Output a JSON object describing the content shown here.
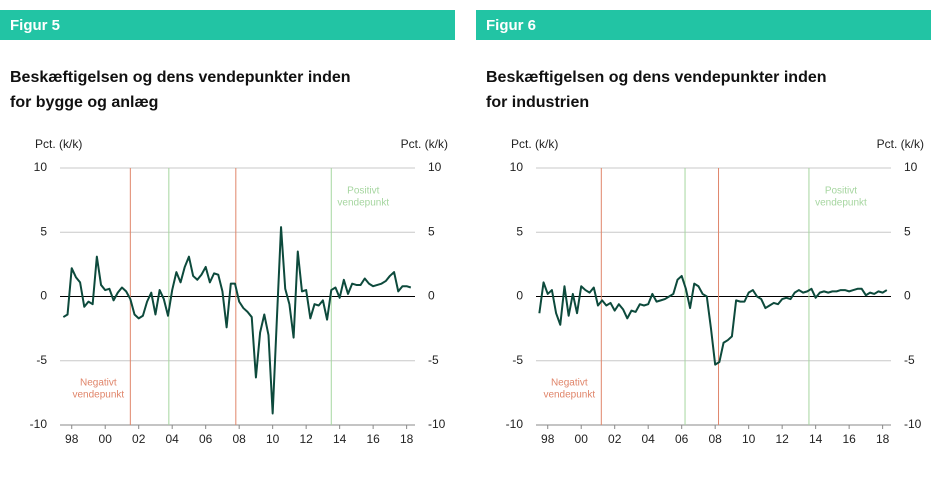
{
  "chart_data": [
    {
      "type": "line",
      "figure_label": "Figur 5",
      "title": [
        "Beskæftigelsen og dens vendepunkter inden",
        "for bygge og anlæg"
      ],
      "y_label": "Pct. (k/k)",
      "y2_label": "Pct. (k/k)",
      "x": [
        1997.5,
        1997.75,
        1998,
        1998.25,
        1998.5,
        1998.75,
        1999,
        1999.25,
        1999.5,
        1999.75,
        2000,
        2000.25,
        2000.5,
        2000.75,
        2001,
        2001.25,
        2001.5,
        2001.75,
        2002,
        2002.25,
        2002.5,
        2002.75,
        2003,
        2003.25,
        2003.5,
        2003.75,
        2004,
        2004.25,
        2004.5,
        2004.75,
        2005,
        2005.25,
        2005.5,
        2005.75,
        2006,
        2006.25,
        2006.5,
        2006.75,
        2007,
        2007.25,
        2007.5,
        2007.75,
        2008,
        2008.25,
        2008.5,
        2008.75,
        2009,
        2009.25,
        2009.5,
        2009.75,
        2010,
        2010.25,
        2010.5,
        2010.75,
        2011,
        2011.25,
        2011.5,
        2011.75,
        2012,
        2012.25,
        2012.5,
        2012.75,
        2013,
        2013.25,
        2013.5,
        2013.75,
        2014,
        2014.25,
        2014.5,
        2014.75,
        2015,
        2015.25,
        2015.5,
        2015.75,
        2016,
        2016.25,
        2016.5,
        2016.75,
        2017,
        2017.25,
        2017.5,
        2017.75,
        2018,
        2018.25
      ],
      "series": [
        {
          "color": "#0d4a3c",
          "values": [
            -1.6,
            -1.4,
            2.2,
            1.5,
            1.1,
            -0.8,
            -0.4,
            -0.6,
            3.1,
            0.9,
            0.5,
            0.6,
            -0.3,
            0.3,
            0.7,
            0.4,
            -0.2,
            -1.4,
            -1.7,
            -1.5,
            -0.4,
            0.3,
            -1.4,
            0.5,
            -0.2,
            -1.5,
            0.5,
            1.9,
            1.1,
            2.3,
            3.1,
            1.6,
            1.3,
            1.7,
            2.3,
            1.1,
            1.8,
            1.7,
            0.4,
            -2.4,
            1.0,
            1.0,
            -0.4,
            -0.9,
            -1.2,
            -1.6,
            -6.3,
            -2.8,
            -1.4,
            -3.0,
            -9.1,
            -1.8,
            5.4,
            0.6,
            -0.6,
            -3.2,
            3.5,
            0.4,
            0.5,
            -1.7,
            -0.6,
            -0.7,
            -0.3,
            -1.8,
            0.5,
            0.7,
            -0.1,
            1.3,
            0.2,
            1.0,
            0.9,
            0.9,
            1.4,
            1.0,
            0.8,
            0.9,
            1.0,
            1.2,
            1.6,
            1.9,
            0.4,
            0.8,
            0.8,
            0.7
          ]
        }
      ],
      "xlim": [
        1997.3,
        2018.5
      ],
      "xticks": [
        {
          "value": 1998,
          "label": "98"
        },
        {
          "value": 2000,
          "label": "00"
        },
        {
          "value": 2002,
          "label": "02"
        },
        {
          "value": 2004,
          "label": "04"
        },
        {
          "value": 2006,
          "label": "06"
        },
        {
          "value": 2008,
          "label": "08"
        },
        {
          "value": 2010,
          "label": "10"
        },
        {
          "value": 2012,
          "label": "12"
        },
        {
          "value": 2014,
          "label": "14"
        },
        {
          "value": 2016,
          "label": "16"
        },
        {
          "value": 2018,
          "label": "18"
        }
      ],
      "ylim": [
        -10,
        10
      ],
      "yticks": [
        10,
        5,
        0,
        -5,
        -10
      ],
      "y2lim": [
        -10,
        10
      ],
      "y2ticks": [
        10,
        5,
        0,
        -5,
        -10
      ],
      "grid": true,
      "vlines": [
        {
          "x": 2001.5,
          "color": "#e0856a",
          "label": [
            "Negativt",
            "vendepunkt"
          ]
        },
        {
          "x": 2003.8,
          "color": "#a6d6a0"
        },
        {
          "x": 2007.8,
          "color": "#e0856a"
        },
        {
          "x": 2013.5,
          "color": "#a6d6a0",
          "label": [
            "Positivt",
            "vendepunkt"
          ]
        }
      ]
    },
    {
      "type": "line",
      "figure_label": "Figur 6",
      "title": [
        "Beskæftigelsen og dens vendepunkter inden",
        "for industrien"
      ],
      "y_label": "Pct. (k/k)",
      "y2_label": "Pct. (k/k)",
      "x": [
        1997.5,
        1997.75,
        1998,
        1998.25,
        1998.5,
        1998.75,
        1999,
        1999.25,
        1999.5,
        1999.75,
        2000,
        2000.25,
        2000.5,
        2000.75,
        2001,
        2001.25,
        2001.5,
        2001.75,
        2002,
        2002.25,
        2002.5,
        2002.75,
        2003,
        2003.25,
        2003.5,
        2003.75,
        2004,
        2004.25,
        2004.5,
        2004.75,
        2005,
        2005.25,
        2005.5,
        2005.75,
        2006,
        2006.25,
        2006.5,
        2006.75,
        2007,
        2007.25,
        2007.5,
        2007.75,
        2008,
        2008.25,
        2008.5,
        2008.75,
        2009,
        2009.25,
        2009.5,
        2009.75,
        2010,
        2010.25,
        2010.5,
        2010.75,
        2011,
        2011.25,
        2011.5,
        2011.75,
        2012,
        2012.25,
        2012.5,
        2012.75,
        2013,
        2013.25,
        2013.5,
        2013.75,
        2014,
        2014.25,
        2014.5,
        2014.75,
        2015,
        2015.25,
        2015.5,
        2015.75,
        2016,
        2016.25,
        2016.5,
        2016.75,
        2017,
        2017.25,
        2017.5,
        2017.75,
        2018,
        2018.25
      ],
      "series": [
        {
          "color": "#0d4a3c",
          "values": [
            -1.3,
            1.1,
            0.2,
            0.5,
            -1.3,
            -2.2,
            0.8,
            -1.5,
            0.2,
            -1.3,
            0.8,
            0.5,
            0.3,
            0.7,
            -0.7,
            -0.3,
            -0.7,
            -0.5,
            -1.1,
            -0.6,
            -1.0,
            -1.7,
            -1.1,
            -1.2,
            -0.6,
            -0.7,
            -0.6,
            0.2,
            -0.4,
            -0.3,
            -0.2,
            0.0,
            0.2,
            1.3,
            1.6,
            0.6,
            -0.9,
            1.0,
            0.8,
            0.2,
            0.0,
            -2.5,
            -5.3,
            -5.1,
            -3.6,
            -3.4,
            -3.1,
            -0.3,
            -0.4,
            -0.4,
            0.3,
            0.5,
            0.0,
            -0.2,
            -0.9,
            -0.7,
            -0.5,
            -0.6,
            -0.2,
            -0.1,
            -0.2,
            0.3,
            0.5,
            0.3,
            0.4,
            0.6,
            -0.1,
            0.3,
            0.4,
            0.3,
            0.4,
            0.4,
            0.5,
            0.5,
            0.4,
            0.5,
            0.6,
            0.6,
            0.1,
            0.3,
            0.2,
            0.4,
            0.3,
            0.5
          ]
        }
      ],
      "xlim": [
        1997.3,
        2018.5
      ],
      "xticks": [
        {
          "value": 1998,
          "label": "98"
        },
        {
          "value": 2000,
          "label": "00"
        },
        {
          "value": 2002,
          "label": "02"
        },
        {
          "value": 2004,
          "label": "04"
        },
        {
          "value": 2006,
          "label": "06"
        },
        {
          "value": 2008,
          "label": "08"
        },
        {
          "value": 2010,
          "label": "10"
        },
        {
          "value": 2012,
          "label": "12"
        },
        {
          "value": 2014,
          "label": "14"
        },
        {
          "value": 2016,
          "label": "16"
        },
        {
          "value": 2018,
          "label": "18"
        }
      ],
      "ylim": [
        -10,
        10
      ],
      "yticks": [
        10,
        5,
        0,
        -5,
        -10
      ],
      "y2lim": [
        -10,
        10
      ],
      "y2ticks": [
        10,
        5,
        0,
        -5,
        -10
      ],
      "grid": true,
      "vlines": [
        {
          "x": 2001.2,
          "color": "#e0856a",
          "label": [
            "Negativt",
            "vendepunkt"
          ]
        },
        {
          "x": 2006.2,
          "color": "#a6d6a0"
        },
        {
          "x": 2008.2,
          "color": "#e0856a"
        },
        {
          "x": 2013.6,
          "color": "#a6d6a0",
          "label": [
            "Positivt",
            "vendepunkt"
          ]
        }
      ]
    }
  ]
}
